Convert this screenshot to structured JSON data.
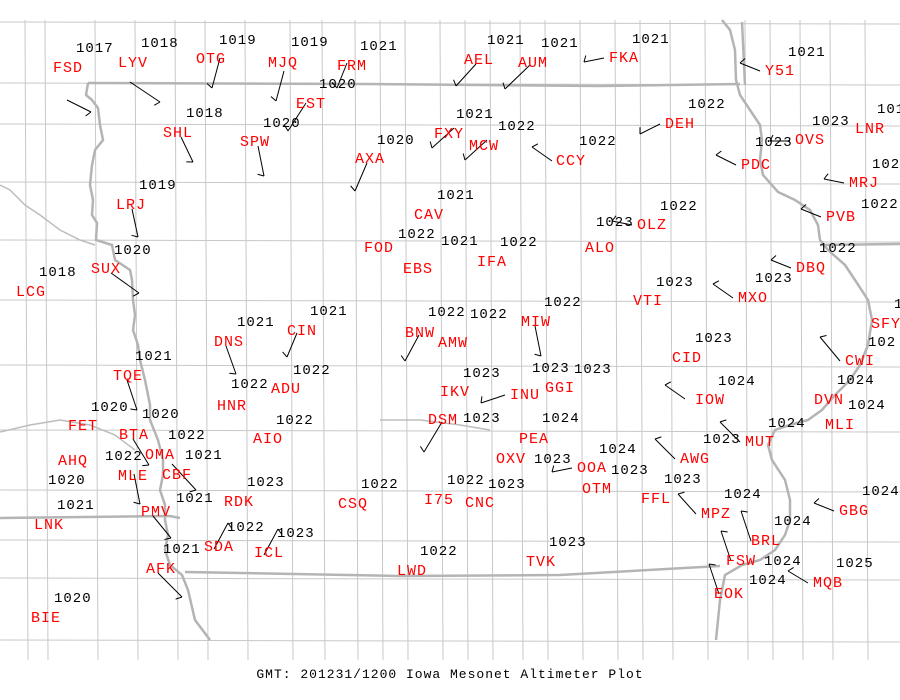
{
  "title": "GMT: 201231/1200 Iowa Mesonet Altimeter Plot",
  "colors": {
    "station_label": "#ff0000",
    "altimeter_value": "#000000",
    "borders": "#c0c0c0"
  },
  "stations": [
    {
      "id": "FSD",
      "alt": "1017"
    },
    {
      "id": "LYV",
      "alt": "1018"
    },
    {
      "id": "OTG",
      "alt": "1019"
    },
    {
      "id": "MJQ",
      "alt": "1019"
    },
    {
      "id": "FRM",
      "alt": "1021"
    },
    {
      "id": "EST",
      "alt": "1020"
    },
    {
      "id": "SHL",
      "alt": "1018"
    },
    {
      "id": "SPW",
      "alt": "1020"
    },
    {
      "id": "AXA",
      "alt": "1020"
    },
    {
      "id": "LRJ",
      "alt": "1019"
    },
    {
      "id": "SUX",
      "alt": "1020"
    },
    {
      "id": "LCG",
      "alt": "1018"
    },
    {
      "id": "FXY",
      "alt": "1021"
    },
    {
      "id": "MCW",
      "alt": "1022"
    },
    {
      "id": "AEL",
      "alt": "1021"
    },
    {
      "id": "AUM",
      "alt": "1021"
    },
    {
      "id": "FKA",
      "alt": "1021"
    },
    {
      "id": "Y51",
      "alt": "1021"
    },
    {
      "id": "DEH",
      "alt": "1022"
    },
    {
      "id": "CCY",
      "alt": "1022"
    },
    {
      "id": "OVS",
      "alt": "1023"
    },
    {
      "id": "LNR",
      "alt": "101"
    },
    {
      "id": "PDC",
      "alt": "1023"
    },
    {
      "id": "MRJ",
      "alt": "102"
    },
    {
      "id": "PVB",
      "alt": "1022"
    },
    {
      "id": "OLZ",
      "alt": "1022"
    },
    {
      "id": "ALO",
      "alt": "1023"
    },
    {
      "id": "IFA",
      "alt": "1022"
    },
    {
      "id": "CAV",
      "alt": "1021"
    },
    {
      "id": "FOD",
      "alt": "1022"
    },
    {
      "id": "EBS",
      "alt": "1021"
    },
    {
      "id": "DBQ",
      "alt": "1022"
    },
    {
      "id": "MXO",
      "alt": "1023"
    },
    {
      "id": "VTI",
      "alt": "1023"
    },
    {
      "id": "SFY",
      "alt": "1"
    },
    {
      "id": "MIW",
      "alt": "1022"
    },
    {
      "id": "BNW",
      "alt": "1022"
    },
    {
      "id": "AMW",
      "alt": "1022"
    },
    {
      "id": "CIN",
      "alt": "1021"
    },
    {
      "id": "DNS",
      "alt": "1021"
    },
    {
      "id": "CID",
      "alt": "1023"
    },
    {
      "id": "CWI",
      "alt": "102"
    },
    {
      "id": "TQE",
      "alt": "1021"
    },
    {
      "id": "ADU",
      "alt": "1022"
    },
    {
      "id": "HNR",
      "alt": "1022"
    },
    {
      "id": "IKV",
      "alt": "1023"
    },
    {
      "id": "INU",
      "alt": "1023"
    },
    {
      "id": "GGI",
      "alt": "1023"
    },
    {
      "id": "DSM",
      "alt": "1023"
    },
    {
      "id": "IOW",
      "alt": "1024"
    },
    {
      "id": "DVN",
      "alt": "1024"
    },
    {
      "id": "FET",
      "alt": "1020"
    },
    {
      "id": "BTA",
      "alt": "1020"
    },
    {
      "id": "AIO",
      "alt": "1022"
    },
    {
      "id": "MLI",
      "alt": "1024"
    },
    {
      "id": "MUT",
      "alt": "1024"
    },
    {
      "id": "OMA",
      "alt": "1022"
    },
    {
      "id": "CBF",
      "alt": "1021"
    },
    {
      "id": "MLE",
      "alt": "1022"
    },
    {
      "id": "AHQ",
      "alt": "1020"
    },
    {
      "id": "PEA",
      "alt": "1024"
    },
    {
      "id": "OXV",
      "alt": "1023"
    },
    {
      "id": "AWG",
      "alt": "1023"
    },
    {
      "id": "OOA",
      "alt": "1024"
    },
    {
      "id": "OTM",
      "alt": "1023"
    },
    {
      "id": "FFL",
      "alt": "1023"
    },
    {
      "id": "I75",
      "alt": "1022"
    },
    {
      "id": "CNC",
      "alt": "1023"
    },
    {
      "id": "CSQ",
      "alt": "1022"
    },
    {
      "id": "RDK",
      "alt": "1023"
    },
    {
      "id": "MPZ",
      "alt": "1024"
    },
    {
      "id": "GBG",
      "alt": "1024"
    },
    {
      "id": "PMV",
      "alt": "1021"
    },
    {
      "id": "LNK",
      "alt": "1021"
    },
    {
      "id": "SDA",
      "alt": "1022"
    },
    {
      "id": "ICL",
      "alt": "1023"
    },
    {
      "id": "BRL",
      "alt": "1024"
    },
    {
      "id": "FSW",
      "alt": "1024"
    },
    {
      "id": "TVK",
      "alt": "1023"
    },
    {
      "id": "LWD",
      "alt": "1022"
    },
    {
      "id": "AFK",
      "alt": "1021"
    },
    {
      "id": "MQB",
      "alt": "1025"
    },
    {
      "id": "EOK",
      "alt": "1024"
    },
    {
      "id": "BIE",
      "alt": "1020"
    }
  ]
}
